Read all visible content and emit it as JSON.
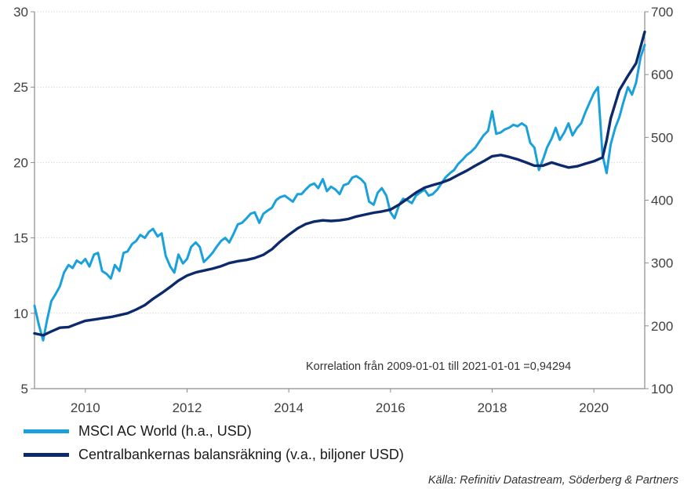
{
  "chart_data": {
    "type": "line",
    "title": "",
    "annotation": "Korrelation från  2009-01-01 till 2021-01-01 =0,94294",
    "source": "Källa: Refinitiv Datastream, Söderberg & Partners",
    "x_ticks": [
      "2010",
      "2012",
      "2014",
      "2016",
      "2018",
      "2020"
    ],
    "xlim": [
      2009.0,
      2021.0
    ],
    "y_left": {
      "lim": [
        5,
        30
      ],
      "ticks": [
        "5",
        "10",
        "15",
        "20",
        "25",
        "30"
      ]
    },
    "y_right": {
      "lim": [
        100,
        700
      ],
      "ticks": [
        "100",
        "200",
        "300",
        "400",
        "500",
        "600",
        "700"
      ]
    },
    "grid": true,
    "legend_position": "bottom-left",
    "series": [
      {
        "name": "MSCI AC World (h.a., USD)",
        "axis": "left",
        "color": "#1aa1db",
        "points": [
          [
            2009.0,
            10.5
          ],
          [
            2009.08,
            9.3
          ],
          [
            2009.17,
            8.2
          ],
          [
            2009.25,
            9.6
          ],
          [
            2009.33,
            10.8
          ],
          [
            2009.42,
            11.3
          ],
          [
            2009.5,
            11.8
          ],
          [
            2009.58,
            12.7
          ],
          [
            2009.67,
            13.2
          ],
          [
            2009.75,
            13.0
          ],
          [
            2009.83,
            13.5
          ],
          [
            2009.92,
            13.3
          ],
          [
            2010.0,
            13.6
          ],
          [
            2010.08,
            13.1
          ],
          [
            2010.17,
            13.9
          ],
          [
            2010.25,
            14.0
          ],
          [
            2010.33,
            12.8
          ],
          [
            2010.42,
            12.6
          ],
          [
            2010.5,
            12.3
          ],
          [
            2010.58,
            13.2
          ],
          [
            2010.67,
            12.8
          ],
          [
            2010.75,
            14.0
          ],
          [
            2010.83,
            14.1
          ],
          [
            2010.92,
            14.6
          ],
          [
            2011.0,
            14.8
          ],
          [
            2011.08,
            15.2
          ],
          [
            2011.17,
            15.0
          ],
          [
            2011.25,
            15.4
          ],
          [
            2011.33,
            15.6
          ],
          [
            2011.42,
            15.1
          ],
          [
            2011.5,
            15.3
          ],
          [
            2011.58,
            13.8
          ],
          [
            2011.67,
            13.1
          ],
          [
            2011.75,
            12.7
          ],
          [
            2011.83,
            13.9
          ],
          [
            2011.92,
            13.3
          ],
          [
            2012.0,
            13.6
          ],
          [
            2012.08,
            14.4
          ],
          [
            2012.17,
            14.7
          ],
          [
            2012.25,
            14.4
          ],
          [
            2012.33,
            13.4
          ],
          [
            2012.42,
            13.7
          ],
          [
            2012.5,
            14.0
          ],
          [
            2012.58,
            14.4
          ],
          [
            2012.67,
            14.8
          ],
          [
            2012.75,
            15.0
          ],
          [
            2012.83,
            14.7
          ],
          [
            2012.92,
            15.3
          ],
          [
            2013.0,
            15.9
          ],
          [
            2013.08,
            16.0
          ],
          [
            2013.17,
            16.3
          ],
          [
            2013.25,
            16.6
          ],
          [
            2013.33,
            16.7
          ],
          [
            2013.42,
            16.0
          ],
          [
            2013.5,
            16.6
          ],
          [
            2013.58,
            16.8
          ],
          [
            2013.67,
            17.0
          ],
          [
            2013.75,
            17.5
          ],
          [
            2013.83,
            17.7
          ],
          [
            2013.92,
            17.8
          ],
          [
            2014.0,
            17.6
          ],
          [
            2014.08,
            17.4
          ],
          [
            2014.17,
            17.9
          ],
          [
            2014.25,
            17.9
          ],
          [
            2014.33,
            18.2
          ],
          [
            2014.42,
            18.5
          ],
          [
            2014.5,
            18.6
          ],
          [
            2014.58,
            18.3
          ],
          [
            2014.67,
            18.9
          ],
          [
            2014.75,
            18.1
          ],
          [
            2014.83,
            18.4
          ],
          [
            2014.92,
            18.2
          ],
          [
            2015.0,
            17.9
          ],
          [
            2015.08,
            18.5
          ],
          [
            2015.17,
            18.6
          ],
          [
            2015.25,
            19.0
          ],
          [
            2015.33,
            19.1
          ],
          [
            2015.42,
            18.9
          ],
          [
            2015.5,
            18.6
          ],
          [
            2015.58,
            17.4
          ],
          [
            2015.67,
            17.2
          ],
          [
            2015.75,
            18.0
          ],
          [
            2015.83,
            18.3
          ],
          [
            2015.92,
            17.8
          ],
          [
            2016.0,
            16.7
          ],
          [
            2016.08,
            16.3
          ],
          [
            2016.17,
            17.2
          ],
          [
            2016.25,
            17.6
          ],
          [
            2016.33,
            17.5
          ],
          [
            2016.42,
            17.3
          ],
          [
            2016.5,
            17.8
          ],
          [
            2016.58,
            18.0
          ],
          [
            2016.67,
            18.2
          ],
          [
            2016.75,
            17.8
          ],
          [
            2016.83,
            17.9
          ],
          [
            2016.92,
            18.2
          ],
          [
            2017.0,
            18.6
          ],
          [
            2017.08,
            19.0
          ],
          [
            2017.17,
            19.3
          ],
          [
            2017.25,
            19.5
          ],
          [
            2017.33,
            19.9
          ],
          [
            2017.42,
            20.2
          ],
          [
            2017.5,
            20.5
          ],
          [
            2017.58,
            20.7
          ],
          [
            2017.67,
            21.0
          ],
          [
            2017.75,
            21.4
          ],
          [
            2017.83,
            21.8
          ],
          [
            2017.92,
            22.1
          ],
          [
            2018.0,
            23.4
          ],
          [
            2018.08,
            21.9
          ],
          [
            2018.17,
            22.0
          ],
          [
            2018.25,
            22.2
          ],
          [
            2018.33,
            22.3
          ],
          [
            2018.42,
            22.5
          ],
          [
            2018.5,
            22.4
          ],
          [
            2018.58,
            22.6
          ],
          [
            2018.67,
            22.4
          ],
          [
            2018.75,
            21.3
          ],
          [
            2018.83,
            21.0
          ],
          [
            2018.92,
            19.5
          ],
          [
            2019.0,
            20.2
          ],
          [
            2019.08,
            21.0
          ],
          [
            2019.17,
            21.6
          ],
          [
            2019.25,
            22.3
          ],
          [
            2019.33,
            21.5
          ],
          [
            2019.42,
            22.0
          ],
          [
            2019.5,
            22.6
          ],
          [
            2019.58,
            21.8
          ],
          [
            2019.67,
            22.3
          ],
          [
            2019.75,
            22.6
          ],
          [
            2019.83,
            23.3
          ],
          [
            2019.92,
            24.0
          ],
          [
            2020.0,
            24.6
          ],
          [
            2020.08,
            25.0
          ],
          [
            2020.17,
            20.5
          ],
          [
            2020.25,
            19.3
          ],
          [
            2020.33,
            21.2
          ],
          [
            2020.42,
            22.3
          ],
          [
            2020.5,
            23.0
          ],
          [
            2020.58,
            24.0
          ],
          [
            2020.67,
            25.0
          ],
          [
            2020.75,
            24.5
          ],
          [
            2020.83,
            25.3
          ],
          [
            2020.92,
            27.0
          ],
          [
            2021.0,
            27.8
          ]
        ]
      },
      {
        "name": "Centralbankernas balansräkning (v.a., biljoner USD)",
        "axis": "right",
        "color": "#0c2a6b",
        "points": [
          [
            2009.0,
            188
          ],
          [
            2009.17,
            185
          ],
          [
            2009.33,
            191
          ],
          [
            2009.5,
            197
          ],
          [
            2009.67,
            198
          ],
          [
            2009.83,
            203
          ],
          [
            2010.0,
            208
          ],
          [
            2010.17,
            210
          ],
          [
            2010.33,
            212
          ],
          [
            2010.5,
            214
          ],
          [
            2010.67,
            217
          ],
          [
            2010.83,
            220
          ],
          [
            2011.0,
            226
          ],
          [
            2011.17,
            233
          ],
          [
            2011.33,
            243
          ],
          [
            2011.5,
            252
          ],
          [
            2011.67,
            262
          ],
          [
            2011.83,
            272
          ],
          [
            2012.0,
            280
          ],
          [
            2012.17,
            285
          ],
          [
            2012.33,
            288
          ],
          [
            2012.5,
            291
          ],
          [
            2012.67,
            295
          ],
          [
            2012.83,
            300
          ],
          [
            2013.0,
            303
          ],
          [
            2013.17,
            305
          ],
          [
            2013.33,
            308
          ],
          [
            2013.5,
            313
          ],
          [
            2013.67,
            322
          ],
          [
            2013.83,
            334
          ],
          [
            2014.0,
            345
          ],
          [
            2014.17,
            355
          ],
          [
            2014.33,
            362
          ],
          [
            2014.5,
            366
          ],
          [
            2014.67,
            368
          ],
          [
            2014.83,
            367
          ],
          [
            2015.0,
            368
          ],
          [
            2015.17,
            370
          ],
          [
            2015.33,
            374
          ],
          [
            2015.5,
            377
          ],
          [
            2015.67,
            380
          ],
          [
            2015.83,
            382
          ],
          [
            2016.0,
            385
          ],
          [
            2016.17,
            393
          ],
          [
            2016.33,
            402
          ],
          [
            2016.5,
            412
          ],
          [
            2016.67,
            420
          ],
          [
            2016.83,
            424
          ],
          [
            2017.0,
            428
          ],
          [
            2017.17,
            433
          ],
          [
            2017.33,
            440
          ],
          [
            2017.5,
            447
          ],
          [
            2017.67,
            455
          ],
          [
            2017.83,
            462
          ],
          [
            2018.0,
            470
          ],
          [
            2018.17,
            472
          ],
          [
            2018.33,
            469
          ],
          [
            2018.5,
            465
          ],
          [
            2018.67,
            460
          ],
          [
            2018.83,
            455
          ],
          [
            2019.0,
            455
          ],
          [
            2019.17,
            460
          ],
          [
            2019.33,
            456
          ],
          [
            2019.5,
            452
          ],
          [
            2019.67,
            454
          ],
          [
            2019.83,
            458
          ],
          [
            2020.0,
            462
          ],
          [
            2020.17,
            468
          ],
          [
            2020.25,
            495
          ],
          [
            2020.33,
            530
          ],
          [
            2020.5,
            575
          ],
          [
            2020.67,
            598
          ],
          [
            2020.83,
            618
          ],
          [
            2021.0,
            668
          ]
        ]
      }
    ]
  }
}
